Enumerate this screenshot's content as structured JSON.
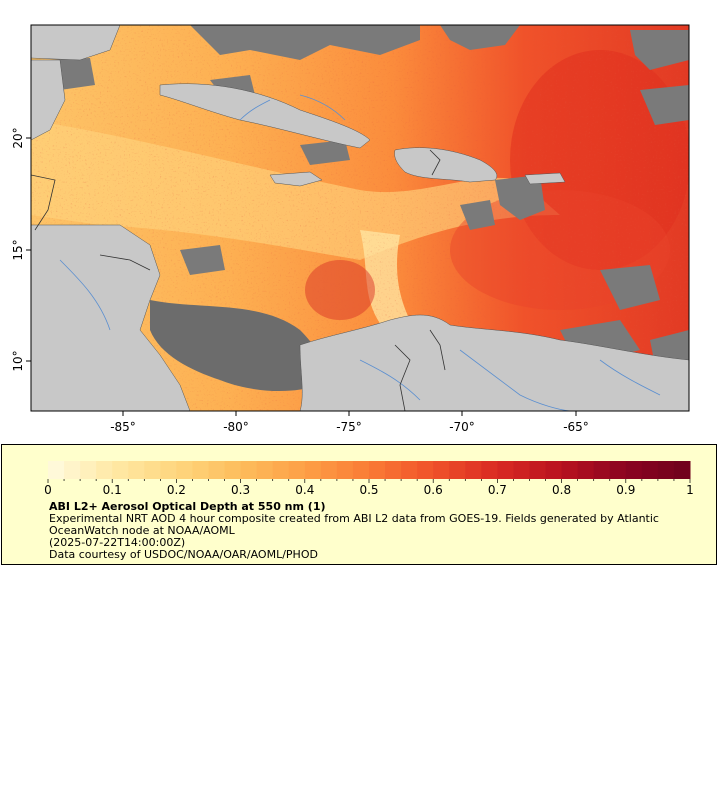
{
  "map": {
    "x_ticks": [
      "-85°",
      "-80°",
      "-75°",
      "-70°",
      "-65°"
    ],
    "y_ticks": [
      "20°",
      "15°",
      "10°"
    ],
    "colors": {
      "land": "#c8c8c8",
      "no_data": "#7a7a7a",
      "rivers": "#5b8fd0",
      "borders": "#404040"
    }
  },
  "legend": {
    "tick_labels": [
      "0",
      "0.1",
      "0.2",
      "0.3",
      "0.4",
      "0.5",
      "0.6",
      "0.7",
      "0.8",
      "0.9",
      "1"
    ],
    "ramp": [
      "#fffbe0",
      "#ffe9a6",
      "#fed67e",
      "#fdbd5c",
      "#fd9f46",
      "#fa7b35",
      "#f0522a",
      "#d92a22",
      "#b8121f",
      "#8a0320",
      "#6e011c"
    ],
    "title": "ABI L2+ Aerosol Optical Depth at 550 nm (1)",
    "description": "Experimental NRT AOD 4 hour composite created from ABI L2 data from GOES-19. Fields generated by Atlantic OceanWatch node at NOAA/AOML",
    "time": "(2025-07-22T14:00:00Z)",
    "credit": "Data courtesy of USDOC/NOAA/OAR/AOML/PHOD"
  }
}
